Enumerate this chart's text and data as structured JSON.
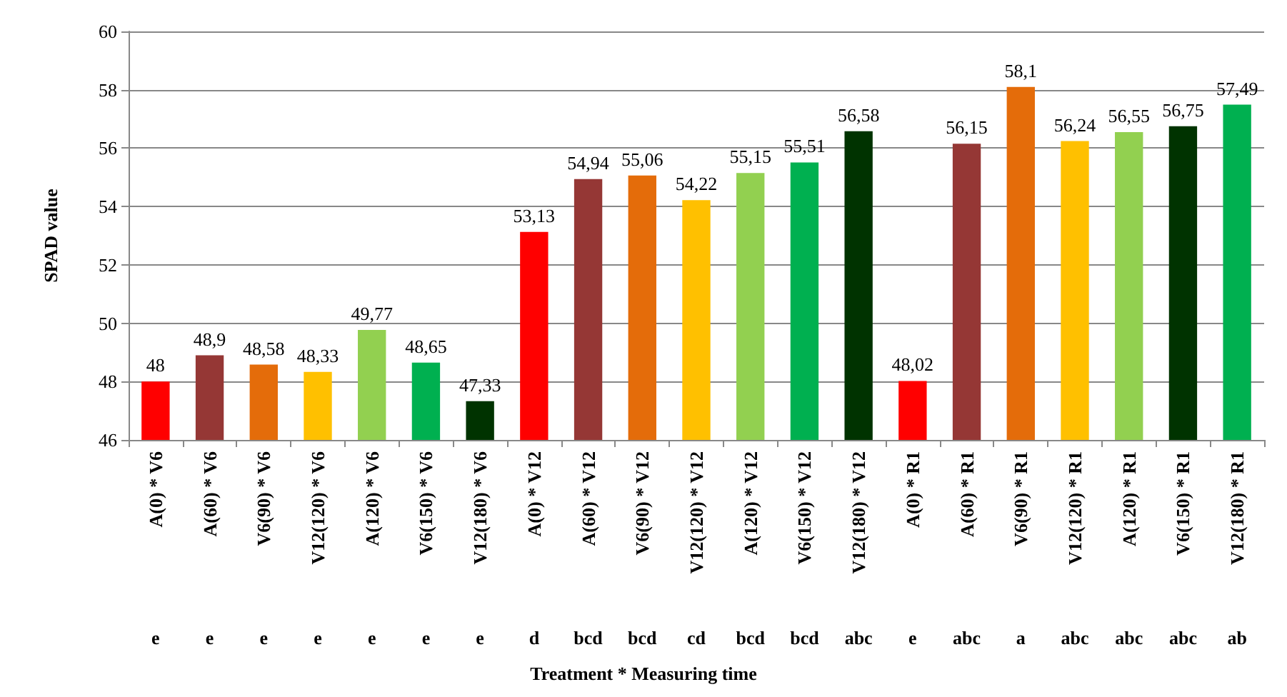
{
  "chart_data": {
    "type": "bar",
    "ylabel": "SPAD value",
    "categories": [
      "A(0) * V6",
      "A(60) * V6",
      "V6(90) * V6",
      "V12(120) * V6",
      "A(120) * V6",
      "V6(150) * V6",
      "V12(180) * V6",
      "A(0) * V12",
      "A(60) * V12",
      "V6(90) * V12",
      "V12(120) * V12",
      "A(120) * V12",
      "V6(150) * V12",
      "V12(180) * V12",
      "A(0) * R1",
      "A(60) * R1",
      "V6(90) * R1",
      "V12(120) * R1",
      "A(120) * R1",
      "V6(150) * R1",
      "V12(180) * R1"
    ],
    "values": [
      48,
      48.9,
      48.58,
      48.33,
      49.77,
      48.65,
      47.33,
      53.13,
      54.94,
      55.06,
      54.22,
      55.15,
      55.51,
      56.58,
      48.02,
      56.15,
      58.1,
      56.24,
      56.55,
      56.75,
      57.49
    ],
    "value_labels": [
      "48",
      "48,9",
      "48,58",
      "48,33",
      "49,77",
      "48,65",
      "47,33",
      "53,13",
      "54,94",
      "55,06",
      "54,22",
      "55,15",
      "55,51",
      "56,58",
      "48,02",
      "56,15",
      "58,1",
      "56,24",
      "56,55",
      "56,75",
      "57,49"
    ],
    "colors": [
      "#ff0000",
      "#953735",
      "#e46c0a",
      "#ffc000",
      "#92d050",
      "#00b050",
      "#003300",
      "#ff0000",
      "#953735",
      "#e46c0a",
      "#ffc000",
      "#92d050",
      "#00b050",
      "#003300",
      "#ff0000",
      "#953735",
      "#e46c0a",
      "#ffc000",
      "#92d050",
      "#003300",
      "#00b050"
    ],
    "ylim": [
      46,
      60
    ],
    "yticks": [
      46,
      48,
      50,
      52,
      54,
      56,
      58,
      60
    ],
    "grid": "y",
    "annotations": [
      "e",
      "e",
      "e",
      "e",
      "e",
      "e",
      "e",
      "d",
      "bcd",
      "bcd",
      "cd",
      "bcd",
      "bcd",
      "abc",
      "e",
      "abc",
      "a",
      "abc",
      "abc",
      "abc",
      "ab",
      "Treatment * Measuring time"
    ]
  }
}
